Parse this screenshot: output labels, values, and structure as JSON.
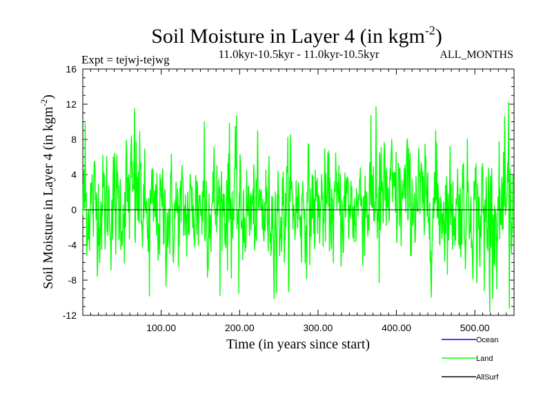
{
  "title_main": "Soil Moisture in Layer 4 (in kgm",
  "title_sup": "-2",
  "title_close": ")",
  "expt_label": "Expt = tejwj-tejwg",
  "period_label": "11.0kyr-10.5kyr - 11.0kyr-10.5kyr",
  "months_label": "ALL_MONTHS",
  "colors": {
    "land": "#00ff00",
    "ocean": "#0000ff",
    "allsurf": "#000000",
    "axis": "#000000"
  },
  "chart_data": {
    "type": "line",
    "title": "Soil Moisture in Layer 4 (in kgm-2)",
    "xlabel": "Time (in years since start)",
    "ylabel_main": "Soil Moisture in Layer 4 (in kgm",
    "ylabel_sup": "-2",
    "ylabel_close": ")",
    "xlim": [
      0,
      550
    ],
    "ylim": [
      -12,
      16
    ],
    "x_ticks": [
      100,
      200,
      300,
      400,
      500
    ],
    "x_tick_labels": [
      "100.00",
      "200.00",
      "300.00",
      "400.00",
      "500.00"
    ],
    "y_ticks": [
      -12,
      -8,
      -4,
      0,
      4,
      8,
      12,
      16
    ],
    "y_tick_labels": [
      "-12",
      "-8",
      "-4",
      "0",
      "4",
      "8",
      "12",
      "16"
    ],
    "zero_line": true,
    "legend": [
      {
        "name": "Ocean",
        "color": "#0000ff"
      },
      {
        "name": "Land",
        "color": "#00ff00"
      },
      {
        "name": "AllSurf",
        "color": "#000000"
      }
    ],
    "series": [
      {
        "name": "Land",
        "color": "#00ff00",
        "x_start": 0,
        "x_step": 0.5,
        "n_points": 1100,
        "min": -11.6,
        "max": 12.2,
        "peaks": [
          {
            "x": 66,
            "y": 11.5
          },
          {
            "x": 155,
            "y": 10.0
          },
          {
            "x": 187,
            "y": 9.8
          },
          {
            "x": 374,
            "y": 11.7
          },
          {
            "x": 543,
            "y": 12.2
          },
          {
            "x": 3,
            "y": 9.8
          },
          {
            "x": 450,
            "y": 9.0
          },
          {
            "x": 265,
            "y": 8.5
          }
        ],
        "troughs": [
          {
            "x": 85,
            "y": -9.8
          },
          {
            "x": 199,
            "y": -9.5
          },
          {
            "x": 247,
            "y": -9.4
          },
          {
            "x": 378,
            "y": -8.3
          },
          {
            "x": 512,
            "y": -9.2
          },
          {
            "x": 519,
            "y": -11.6
          },
          {
            "x": 544,
            "y": -11.2
          },
          {
            "x": 106,
            "y": -8.7
          }
        ],
        "segments": [
          {
            "x0": 0,
            "x1": 55,
            "mean": 0.5,
            "std": 3.2
          },
          {
            "x0": 55,
            "x1": 75,
            "mean": 1.5,
            "std": 3.6
          },
          {
            "x0": 75,
            "x1": 140,
            "mean": -0.5,
            "std": 3.0
          },
          {
            "x0": 140,
            "x1": 200,
            "mean": 0.7,
            "std": 3.4
          },
          {
            "x0": 200,
            "x1": 260,
            "mean": -0.3,
            "std": 3.0
          },
          {
            "x0": 260,
            "x1": 350,
            "mean": 0.3,
            "std": 3.0
          },
          {
            "x0": 350,
            "x1": 430,
            "mean": 1.2,
            "std": 3.3
          },
          {
            "x0": 430,
            "x1": 500,
            "mean": 0.4,
            "std": 3.1
          },
          {
            "x0": 500,
            "x1": 550,
            "mean": -0.5,
            "std": 3.6
          }
        ]
      }
    ]
  }
}
